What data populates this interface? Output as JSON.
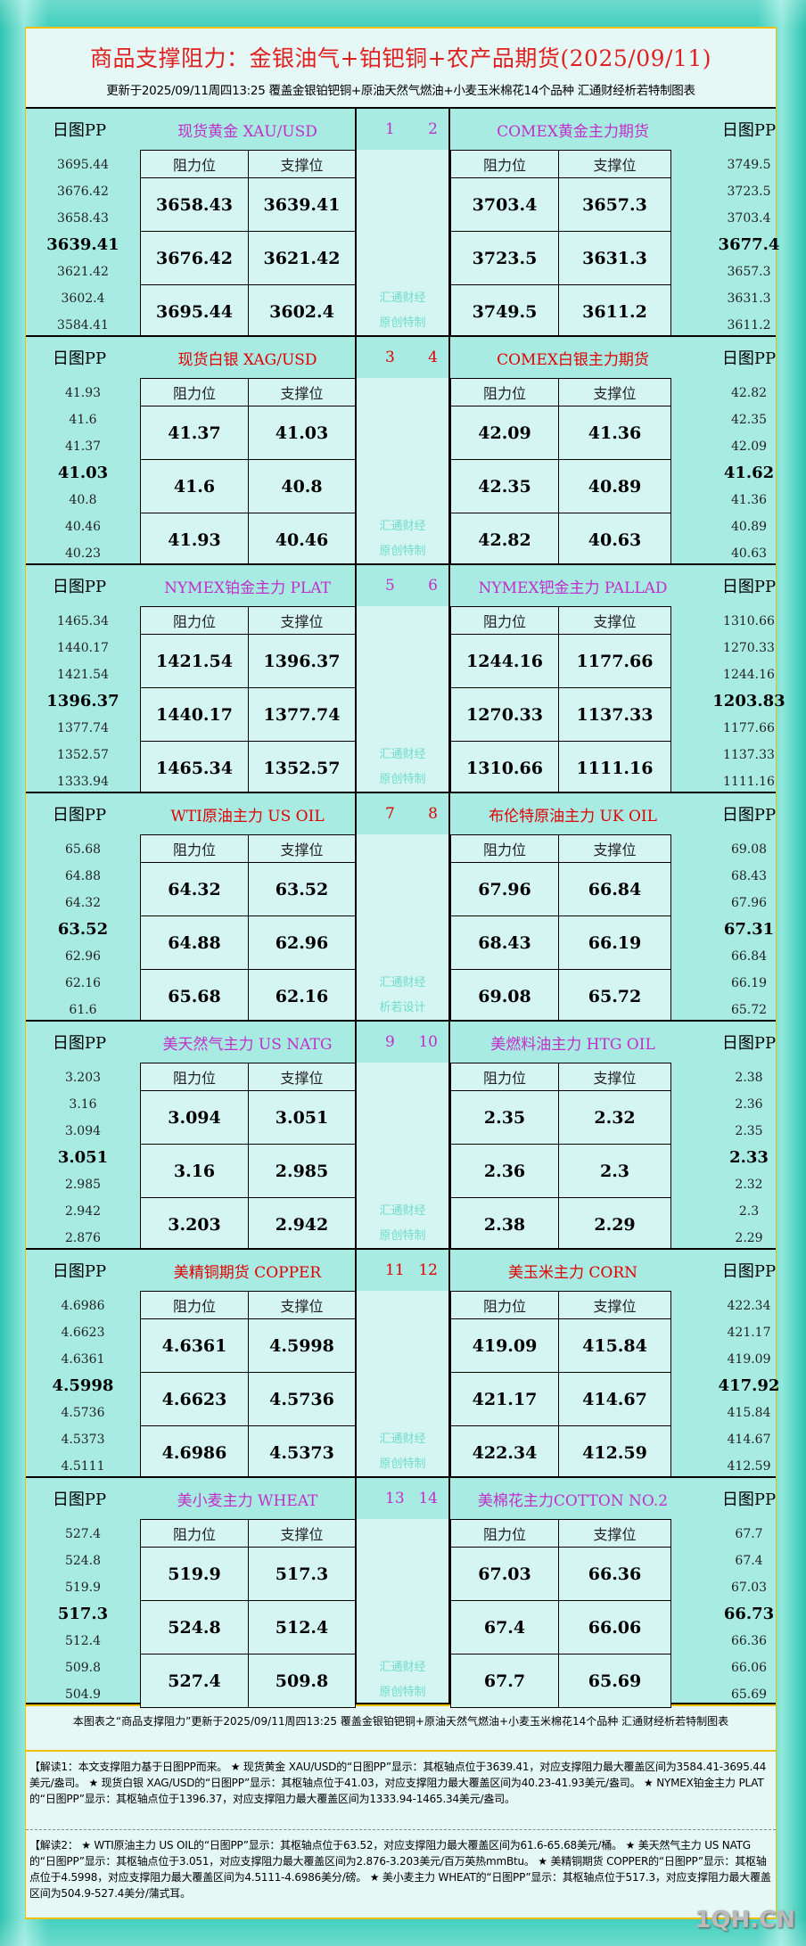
{
  "header": {
    "title": "商品支撑阻力：金银油气+铂钯铜+农产品期货(2025/09/11)",
    "subtitle": "更新于2025/09/11周四13:25  覆盖金银铂钯铜+原油天然气燃油+小麦玉米棉花14个品种  汇通财经析若特制图表"
  },
  "labels": {
    "pp": "日图PP",
    "resistance": "阻力位",
    "support": "支撑位"
  },
  "colors": {
    "purple": "#c030c8",
    "red": "#e00000"
  },
  "blocks": [
    {
      "color": "purple",
      "nums": [
        "1",
        "2"
      ],
      "left": {
        "name": "现货黄金 XAU/USD",
        "pp": [
          "3695.44",
          "3676.42",
          "3658.43",
          "3639.41",
          "3621.42",
          "3602.4",
          "3584.41"
        ],
        "rows": [
          [
            "3658.43",
            "3639.41"
          ],
          [
            "3676.42",
            "3621.42"
          ],
          [
            "3695.44",
            "3602.4"
          ]
        ]
      },
      "right": {
        "name": "COMEX黄金主力期货",
        "pp": [
          "3749.5",
          "3723.5",
          "3703.4",
          "3677.4",
          "3657.3",
          "3631.3",
          "3611.2"
        ],
        "rows": [
          [
            "3703.4",
            "3657.3"
          ],
          [
            "3723.5",
            "3631.3"
          ],
          [
            "3749.5",
            "3611.2"
          ]
        ]
      },
      "wm": [
        "汇通财经",
        "原创特制"
      ]
    },
    {
      "color": "red",
      "nums": [
        "3",
        "4"
      ],
      "left": {
        "name": "现货白银 XAG/USD",
        "pp": [
          "41.93",
          "41.6",
          "41.37",
          "41.03",
          "40.8",
          "40.46",
          "40.23"
        ],
        "rows": [
          [
            "41.37",
            "41.03"
          ],
          [
            "41.6",
            "40.8"
          ],
          [
            "41.93",
            "40.46"
          ]
        ]
      },
      "right": {
        "name": "COMEX白银主力期货",
        "pp": [
          "42.82",
          "42.35",
          "42.09",
          "41.62",
          "41.36",
          "40.89",
          "40.63"
        ],
        "rows": [
          [
            "42.09",
            "41.36"
          ],
          [
            "42.35",
            "40.89"
          ],
          [
            "42.82",
            "40.63"
          ]
        ]
      },
      "wm": [
        "汇通财经",
        "原创特制"
      ]
    },
    {
      "color": "purple",
      "nums": [
        "5",
        "6"
      ],
      "left": {
        "name": "NYMEX铂金主力 PLAT",
        "pp": [
          "1465.34",
          "1440.17",
          "1421.54",
          "1396.37",
          "1377.74",
          "1352.57",
          "1333.94"
        ],
        "rows": [
          [
            "1421.54",
            "1396.37"
          ],
          [
            "1440.17",
            "1377.74"
          ],
          [
            "1465.34",
            "1352.57"
          ]
        ]
      },
      "right": {
        "name": "NYMEX钯金主力 PALLAD",
        "pp": [
          "1310.66",
          "1270.33",
          "1244.16",
          "1203.83",
          "1177.66",
          "1137.33",
          "1111.16"
        ],
        "rows": [
          [
            "1244.16",
            "1177.66"
          ],
          [
            "1270.33",
            "1137.33"
          ],
          [
            "1310.66",
            "1111.16"
          ]
        ]
      },
      "wm": [
        "汇通财经",
        "原创特制"
      ]
    },
    {
      "color": "red",
      "nums": [
        "7",
        "8"
      ],
      "left": {
        "name": "WTI原油主力 US OIL",
        "pp": [
          "65.68",
          "64.88",
          "64.32",
          "63.52",
          "62.96",
          "62.16",
          "61.6"
        ],
        "rows": [
          [
            "64.32",
            "63.52"
          ],
          [
            "64.88",
            "62.96"
          ],
          [
            "65.68",
            "62.16"
          ]
        ]
      },
      "right": {
        "name": "布伦特原油主力 UK OIL",
        "pp": [
          "69.08",
          "68.43",
          "67.96",
          "67.31",
          "66.84",
          "66.19",
          "65.72"
        ],
        "rows": [
          [
            "67.96",
            "66.84"
          ],
          [
            "68.43",
            "66.19"
          ],
          [
            "69.08",
            "65.72"
          ]
        ]
      },
      "wm": [
        "汇通财经",
        "析若设计"
      ]
    },
    {
      "color": "purple",
      "nums": [
        "9",
        "10"
      ],
      "left": {
        "name": "美天然气主力 US NATG",
        "pp": [
          "3.203",
          "3.16",
          "3.094",
          "3.051",
          "2.985",
          "2.942",
          "2.876"
        ],
        "rows": [
          [
            "3.094",
            "3.051"
          ],
          [
            "3.16",
            "2.985"
          ],
          [
            "3.203",
            "2.942"
          ]
        ]
      },
      "right": {
        "name": "美燃料油主力 HTG OIL",
        "pp": [
          "2.38",
          "2.36",
          "2.35",
          "2.33",
          "2.32",
          "2.3",
          "2.29"
        ],
        "rows": [
          [
            "2.35",
            "2.32"
          ],
          [
            "2.36",
            "2.3"
          ],
          [
            "2.38",
            "2.29"
          ]
        ]
      },
      "wm": [
        "汇通财经",
        "原创特制"
      ]
    },
    {
      "color": "red",
      "nums": [
        "11",
        "12"
      ],
      "left": {
        "name": "美精铜期货 COPPER",
        "pp": [
          "4.6986",
          "4.6623",
          "4.6361",
          "4.5998",
          "4.5736",
          "4.5373",
          "4.5111"
        ],
        "rows": [
          [
            "4.6361",
            "4.5998"
          ],
          [
            "4.6623",
            "4.5736"
          ],
          [
            "4.6986",
            "4.5373"
          ]
        ]
      },
      "right": {
        "name": "美玉米主力 CORN",
        "pp": [
          "422.34",
          "421.17",
          "419.09",
          "417.92",
          "415.84",
          "414.67",
          "412.59"
        ],
        "rows": [
          [
            "419.09",
            "415.84"
          ],
          [
            "421.17",
            "414.67"
          ],
          [
            "422.34",
            "412.59"
          ]
        ]
      },
      "wm": [
        "汇通财经",
        "原创特制"
      ]
    },
    {
      "color": "purple",
      "nums": [
        "13",
        "14"
      ],
      "left": {
        "name": "美小麦主力 WHEAT",
        "pp": [
          "527.4",
          "524.8",
          "519.9",
          "517.3",
          "512.4",
          "509.8",
          "504.9"
        ],
        "rows": [
          [
            "519.9",
            "517.3"
          ],
          [
            "524.8",
            "512.4"
          ],
          [
            "527.4",
            "509.8"
          ]
        ]
      },
      "right": {
        "name": "美棉花主力COTTON NO.2",
        "pp": [
          "67.7",
          "67.4",
          "67.03",
          "66.73",
          "66.36",
          "66.06",
          "65.69"
        ],
        "rows": [
          [
            "67.03",
            "66.36"
          ],
          [
            "67.4",
            "66.06"
          ],
          [
            "67.7",
            "65.69"
          ]
        ]
      },
      "wm": [
        "汇通财经",
        "原创特制"
      ]
    }
  ],
  "footer": {
    "note": "本图表之“商品支撑阻力”更新于2025/09/11周四13:25 覆盖金银铂钯铜+原油天然气燃油+小麦玉米棉花14个品种 汇通财经析若特制图表",
    "jiedu1": "【解读1：本文支撑阻力基于日图PP而来。 ★ 现货黄金 XAU/USD的“日图PP”显示：其枢轴点位于3639.41，对应支撑阻力最大覆盖区间为3584.41-3695.44美元/盎司。 ★ 现货白银 XAG/USD的“日图PP”显示：其枢轴点位于41.03，对应支撑阻力最大覆盖区间为40.23-41.93美元/盎司。 ★ NYMEX铂金主力 PLAT的“日图PP”显示：其枢轴点位于1396.37，对应支撑阻力最大覆盖区间为1333.94-1465.34美元/盎司。",
    "jiedu2": "【解读2： ★ WTI原油主力 US OIL的“日图PP”显示：其枢轴点位于63.52，对应支撑阻力最大覆盖区间为61.6-65.68美元/桶。 ★ 美天然气主力 US NATG的“日图PP”显示：其枢轴点位于3.051，对应支撑阻力最大覆盖区间为2.876-3.203美元/百万英热mmBtu。 ★ 美精铜期货 COPPER的“日图PP”显示：其枢轴点位于4.5998，对应支撑阻力最大覆盖区间为4.5111-4.6986美分/磅。 ★ 美小麦主力 WHEAT的“日图PP”显示：其枢轴点位于517.3，对应支撑阻力最大覆盖区间为504.9-527.4美分/蒲式耳。",
    "watermark": "1QH.CN"
  }
}
